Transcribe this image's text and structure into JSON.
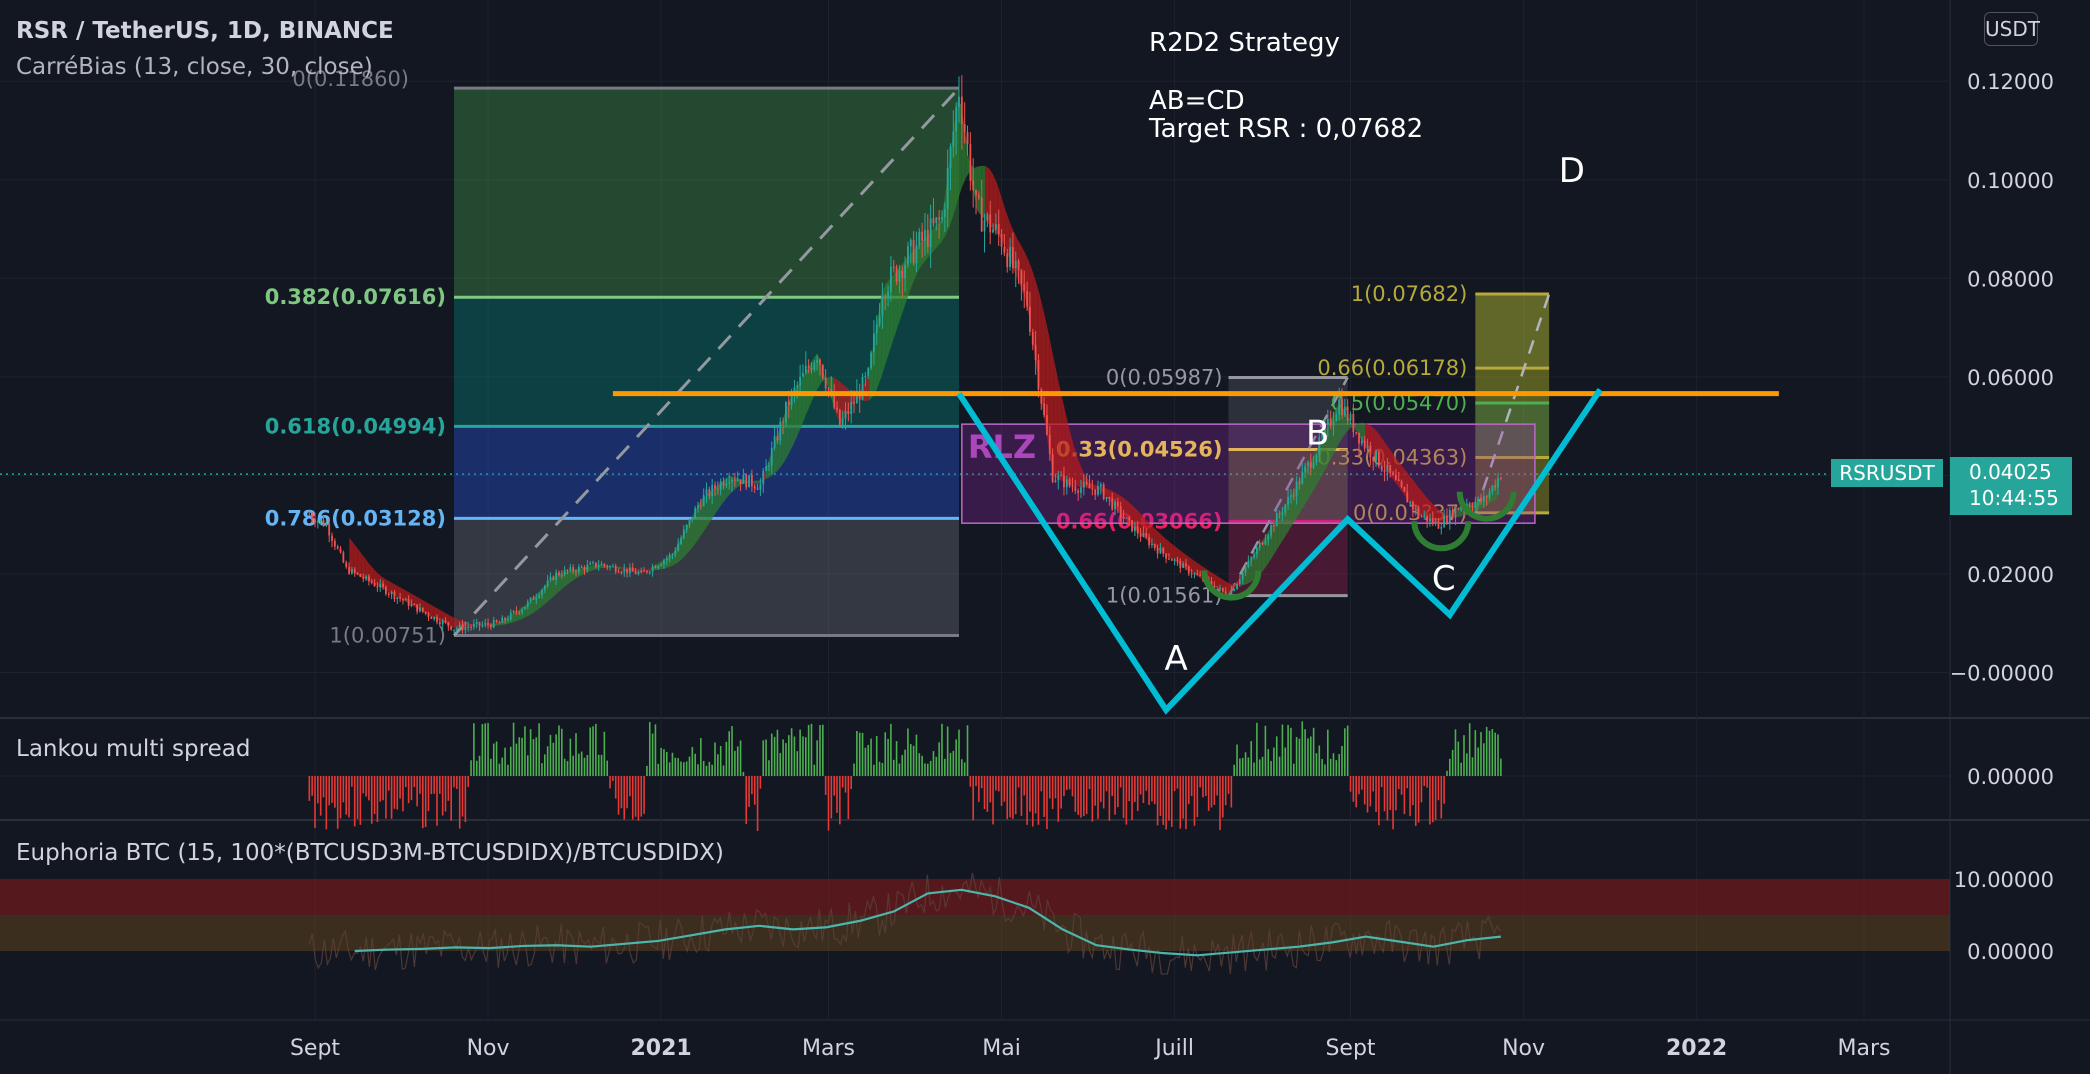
{
  "header": {
    "symbol_line": "RSR / TetherUS, 1D, BINANCE",
    "indicator_line": "CarréBias (13, close, 30, close)"
  },
  "annotations": {
    "strategy_title": "R2D2 Strategy",
    "pattern": "AB=CD",
    "target": "Target RSR : 0,07682",
    "point_a": "A",
    "point_b": "B",
    "point_c": "C",
    "point_d": "D",
    "zone_label": "RLZ"
  },
  "panes": {
    "spread_title": "Lankou multi spread",
    "euphoria_title": "Euphoria BTC (15, 100*(BTCUSD3M-BTCUSDIDX)/BTCUSDIDX)"
  },
  "price_scale": {
    "currency_button": "USDT",
    "symbol_tag": "RSRUSDT",
    "last_price": "0.04025",
    "countdown": "10:44:55"
  },
  "colors": {
    "background": "#131722",
    "cyan_pattern": "#00bcd4",
    "orange_level": "#ff9800",
    "fib_teal": "#26a69a",
    "fib_blue": "#64b5f6",
    "fib_green": "#81c784",
    "bull": "#26a69a",
    "bear": "#ef5350",
    "rlz_purple": "#9c27b0"
  },
  "chart_data": {
    "type": "candlestick",
    "symbol": "RSR / TetherUS",
    "interval": "1D",
    "exchange": "BINANCE",
    "y_axis_ticks": [
      "0.12000",
      "0.10000",
      "0.08000",
      "0.06000",
      "0.04000",
      "0.02000",
      "−0.00000"
    ],
    "x_axis_ticks": [
      "Sept",
      "Nov",
      "2021",
      "Mars",
      "Mai",
      "Juill",
      "Sept",
      "Nov",
      "2022",
      "Mars"
    ],
    "ylim": [
      -0.01,
      0.124
    ],
    "price_path": [
      [
        "2020-08-30",
        0.032
      ],
      [
        "2020-09-05",
        0.03
      ],
      [
        "2020-09-12",
        0.021
      ],
      [
        "2020-09-25",
        0.017
      ],
      [
        "2020-10-10",
        0.012
      ],
      [
        "2020-10-20",
        0.009
      ],
      [
        "2020-11-05",
        0.01
      ],
      [
        "2020-11-15",
        0.014
      ],
      [
        "2020-11-25",
        0.02
      ],
      [
        "2020-12-10",
        0.022
      ],
      [
        "2020-12-25",
        0.02
      ],
      [
        "2021-01-05",
        0.024
      ],
      [
        "2021-01-15",
        0.035
      ],
      [
        "2021-01-25",
        0.04
      ],
      [
        "2021-02-05",
        0.038
      ],
      [
        "2021-02-15",
        0.055
      ],
      [
        "2021-02-25",
        0.065
      ],
      [
        "2021-03-05",
        0.05
      ],
      [
        "2021-03-15",
        0.06
      ],
      [
        "2021-03-20",
        0.078
      ],
      [
        "2021-03-30",
        0.085
      ],
      [
        "2021-04-10",
        0.092
      ],
      [
        "2021-04-16",
        0.1186
      ],
      [
        "2021-04-22",
        0.094
      ],
      [
        "2021-05-01",
        0.088
      ],
      [
        "2021-05-10",
        0.075
      ],
      [
        "2021-05-19",
        0.04
      ],
      [
        "2021-05-25",
        0.038
      ],
      [
        "2021-06-05",
        0.037
      ],
      [
        "2021-06-15",
        0.03
      ],
      [
        "2021-06-25",
        0.025
      ],
      [
        "2021-07-05",
        0.021
      ],
      [
        "2021-07-20",
        0.0156
      ],
      [
        "2021-07-30",
        0.025
      ],
      [
        "2021-08-10",
        0.035
      ],
      [
        "2021-08-20",
        0.045
      ],
      [
        "2021-08-28",
        0.055
      ],
      [
        "2021-09-05",
        0.047
      ],
      [
        "2021-09-15",
        0.04
      ],
      [
        "2021-09-25",
        0.032
      ],
      [
        "2021-10-02",
        0.03
      ],
      [
        "2021-10-10",
        0.034
      ],
      [
        "2021-10-18",
        0.035
      ],
      [
        "2021-10-24",
        0.04025
      ]
    ],
    "harmonic_pattern": {
      "name": "AB=CD",
      "points": [
        {
          "label": "",
          "date": "2021-04-16",
          "price": 0.0566
        },
        {
          "label": "A",
          "date": "2021-06-28",
          "price": -0.0076
        },
        {
          "label": "B",
          "date": "2021-08-31",
          "price": 0.0311
        },
        {
          "label": "C",
          "date": "2021-10-06",
          "price": 0.0117
        },
        {
          "label": "D",
          "date": "2021-11-28",
          "price": 0.0574
        }
      ],
      "target": 0.07682
    },
    "horizontal_level": {
      "price": 0.0566,
      "from": "2020-12-15",
      "to": "2022-01-30"
    },
    "fib_retracement_1": {
      "from": {
        "date": "2020-10-20",
        "price": 0.00751
      },
      "to": {
        "date": "2021-04-16",
        "price": 0.1186
      },
      "levels": [
        {
          "label": "0(0.11860)",
          "ratio": 0,
          "price": 0.1186
        },
        {
          "label": "0.382(0.07616)",
          "ratio": 0.382,
          "price": 0.07616,
          "color": "#81c784"
        },
        {
          "label": "0.618(0.04994)",
          "ratio": 0.618,
          "price": 0.04994,
          "color": "#26a69a"
        },
        {
          "label": "0.786(0.03128)",
          "ratio": 0.786,
          "price": 0.03128,
          "color": "#64b5f6"
        },
        {
          "label": "1(0.00751)",
          "ratio": 1,
          "price": 0.00751
        }
      ]
    },
    "fib_retracement_2": {
      "from": {
        "date": "2021-07-20",
        "price": 0.01561
      },
      "to": {
        "date": "2021-08-31",
        "price": 0.05987
      },
      "levels": [
        {
          "label": "0(0.05987)",
          "ratio": 0,
          "price": 0.05987
        },
        {
          "label": "0.33(0.04526)",
          "ratio": 0.33,
          "price": 0.04526,
          "color": "#ffeb3b"
        },
        {
          "label": "0.66(0.03066)",
          "ratio": 0.66,
          "price": 0.03066,
          "color": "#e91e63"
        },
        {
          "label": "1(0.01561)",
          "ratio": 1,
          "price": 0.01561
        }
      ]
    },
    "fib_extension": {
      "levels": [
        {
          "label": "1(0.07682)",
          "price": 0.07682
        },
        {
          "label": "0.66(0.06178)",
          "price": 0.06178
        },
        {
          "label": "0.5(0.05470)",
          "price": 0.0547,
          "color": "#4caf50"
        },
        {
          "label": "0.33(0.04363)",
          "price": 0.04363
        },
        {
          "label": "0(0.03?37)",
          "price": 0.0324
        }
      ]
    },
    "rlz_zone": {
      "label": "RLZ",
      "from": "2021-04-17",
      "to": "2021-11-05",
      "top": 0.0504,
      "bottom": 0.0303
    },
    "spread_pane": {
      "title": "Lankou multi spread",
      "y_axis_ticks": [
        "0.00000"
      ]
    },
    "euphoria_pane": {
      "title": "Euphoria BTC (15, 100*(BTCUSD3M-BTCUSDIDX)/BTCUSDIDX)",
      "y_axis_ticks": [
        "10.00000",
        "0.00000"
      ],
      "series": [
        {
          "values": [
            0.0,
            0.2,
            0.3,
            0.5,
            0.4,
            0.7,
            0.8,
            0.6,
            1.0,
            1.4,
            2.2,
            3.0,
            3.5,
            3.0,
            3.3,
            4.2,
            5.5,
            8.0,
            8.5,
            7.6,
            6.0,
            3.0,
            0.8,
            0.2,
            -0.3,
            -0.6,
            -0.2,
            0.2,
            0.6,
            1.2,
            2.0,
            1.3,
            0.6,
            1.5,
            2.0
          ]
        }
      ]
    }
  }
}
